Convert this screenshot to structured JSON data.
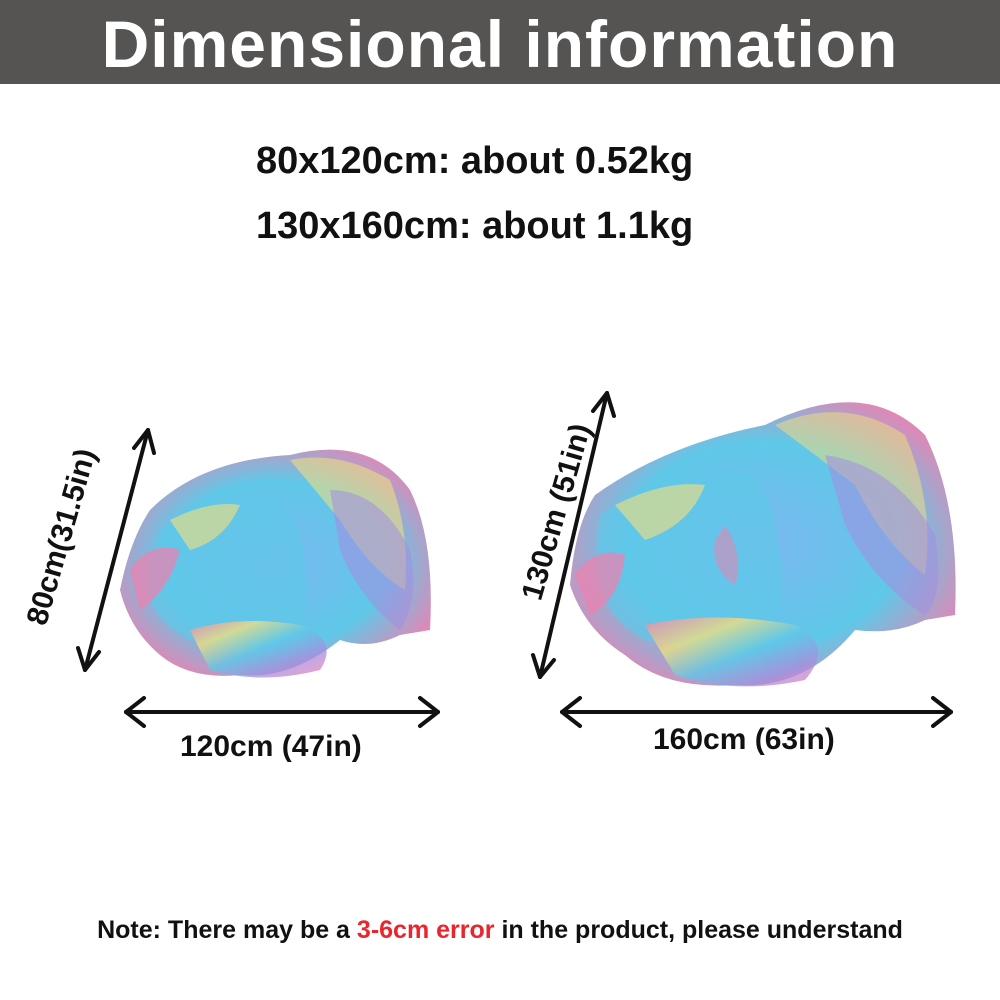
{
  "header": {
    "title": "Dimensional information"
  },
  "specs": [
    {
      "text": "80x120cm: about 0.52kg"
    },
    {
      "text": "130x160cm: about 1.1kg"
    }
  ],
  "blankets": {
    "small": {
      "height_label": "80cm(31.5in)",
      "width_label": "120cm (47in)"
    },
    "large": {
      "height_label": "130cm (51in)",
      "width_label": "160cm (63in)"
    }
  },
  "note": {
    "prefix": "Note: There may be a ",
    "highlight": "3-6cm error",
    "suffix": " in the product, please understand"
  },
  "colors": {
    "header_bg": "#565452",
    "accent": "#e8262c",
    "blanket_palette": [
      "#5fc8e8",
      "#7ab8f0",
      "#f27fae",
      "#f7e07a",
      "#a58de0",
      "#8fd9b0"
    ]
  }
}
